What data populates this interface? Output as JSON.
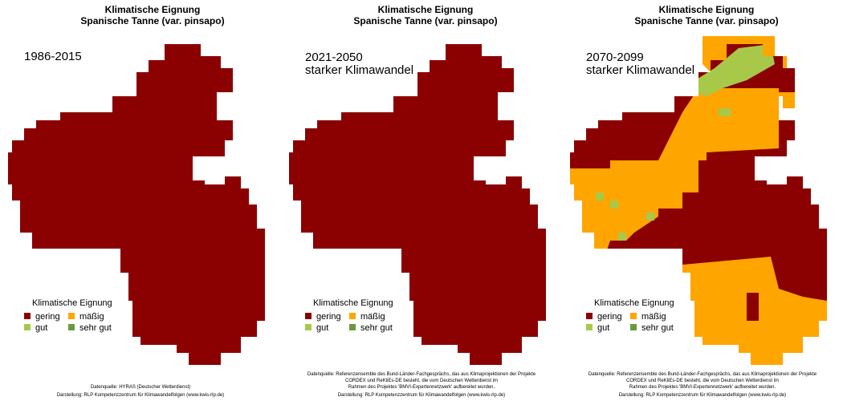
{
  "panels": [
    {
      "title": [
        "Klimatische Eignung",
        "Spanische Tanne (var. pinsapo)"
      ],
      "period": [
        "1986-2015"
      ],
      "legend": {
        "title": "Klimatische Eignung",
        "items": [
          {
            "name": "gering",
            "color": "#8b0000"
          },
          {
            "name": "mäßig",
            "color": "#ffa500"
          },
          {
            "name": "gut",
            "color": "#a8c84a"
          },
          {
            "name": "sehr gut",
            "color": "#6b9a3c"
          }
        ]
      },
      "source": [
        "Datenquelle: HYRAS (Deutscher Wetterdienst)",
        "Darstellung: RLP Kompetenzzentrum für Klimawandelfolgen (www.kwis-rlp.de)"
      ]
    },
    {
      "title": [
        "Klimatische Eignung",
        "Spanische Tanne (var. pinsapo)"
      ],
      "period": [
        "2021-2050",
        "starker Klimawandel"
      ],
      "legend": {
        "title": "Klimatische Eignung",
        "items": [
          {
            "name": "gering",
            "color": "#8b0000"
          },
          {
            "name": "mäßig",
            "color": "#ffa500"
          },
          {
            "name": "gut",
            "color": "#a8c84a"
          },
          {
            "name": "sehr gut",
            "color": "#6b9a3c"
          }
        ]
      },
      "source": [
        "Datenquelle: Referenzensemble des Bund-Länder-Fachgesprächs, das aus Klimaprojektionen der Projekte",
        "CORDEX und ReKliEs-DE besteht, die vom Deutschen Wetterdienst im",
        "Rahmen des Projektes 'BMVI-Expertennetzwerk' aufbereitet wurden.",
        "Darstellung: RLP Kompetenzzentrum für Klimawandelfolgen (www.kwis-rlp.de)"
      ]
    },
    {
      "title": [
        "Klimatische Eignung",
        "Spanische Tanne (var. pinsapo)"
      ],
      "period": [
        "2070-2099",
        "starker Klimawandel"
      ],
      "legend": {
        "title": "Klimatische Eignung",
        "items": [
          {
            "name": "gering",
            "color": "#8b0000"
          },
          {
            "name": "mäßig",
            "color": "#ffa500"
          },
          {
            "name": "gut",
            "color": "#a8c84a"
          },
          {
            "name": "sehr gut",
            "color": "#6b9a3c"
          }
        ]
      },
      "source": [
        "Datenquelle: Referenzensemble des Bund-Länder-Fachgesprächs, das aus Klimaprojektionen der Projekte",
        "CORDEX und ReKliEs-DE besteht, die vom Deutschen Wetterdienst im",
        "Rahmen des Projektes 'BMVI-Expertennetzwerk' aufbereitet wurden.",
        "Darstellung: RLP Kompetenzzentrum für Klimawandelfolgen (www.kwis-rlp.de)"
      ]
    }
  ]
}
